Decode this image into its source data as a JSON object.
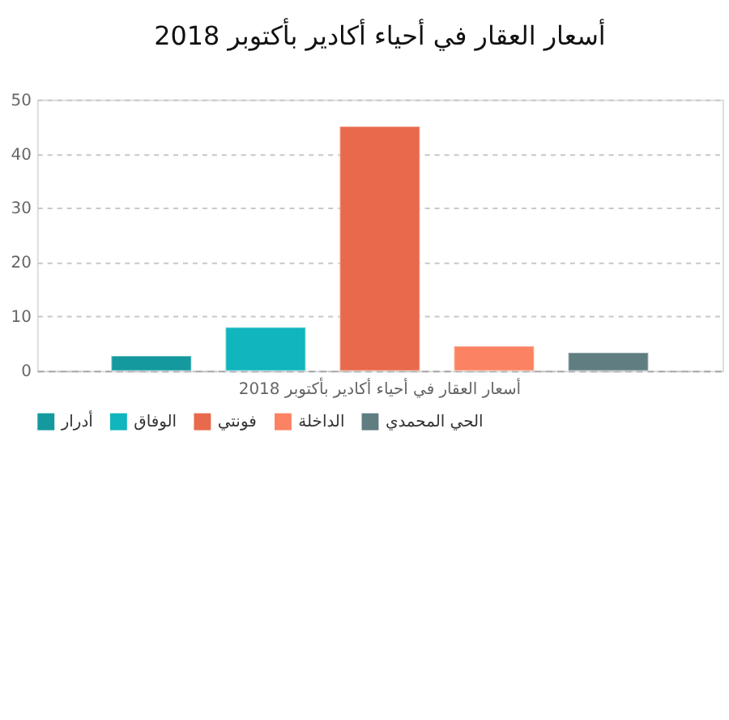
{
  "chart_data": {
    "type": "bar",
    "title": "أسعار العقار في أحياء أكادير بأكتوبر 2018",
    "categories": [
      "أسعار العقار في أحياء أكادير بأكتوبر 2018"
    ],
    "series": [
      {
        "name": "أدرار",
        "color": "#13999e",
        "values": [
          2.7
        ]
      },
      {
        "name": "الوفاق",
        "color": "#10b5bd",
        "values": [
          8.0
        ]
      },
      {
        "name": "فونتي",
        "color": "#e8694b",
        "values": [
          45
        ]
      },
      {
        "name": "الداخلة",
        "color": "#fb8262",
        "values": [
          4.5
        ]
      },
      {
        "name": "الحي المحمدي",
        "color": "#607d82",
        "values": [
          3.3
        ]
      }
    ],
    "ylim": [
      0,
      50
    ],
    "yticks": [
      0,
      10,
      20,
      30,
      40,
      50
    ],
    "grid": "y",
    "legend": "bottom"
  }
}
